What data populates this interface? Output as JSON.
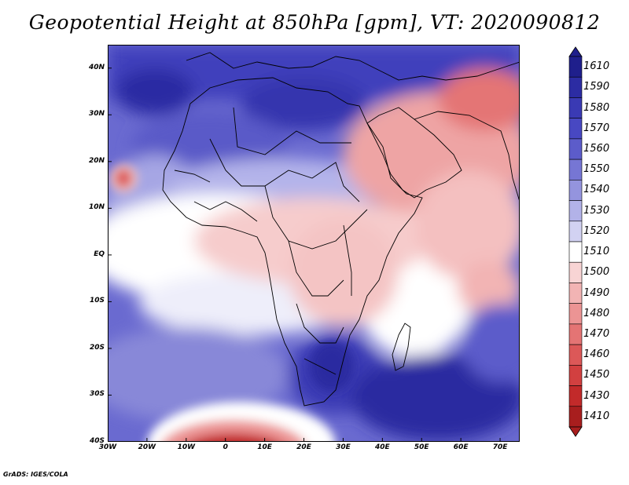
{
  "title": "Geopotential Height at 850hPa [gpm], VT: 2020090812",
  "footer": "GrADS: IGES/COLA",
  "axes": {
    "y_labels": [
      "40N",
      "30N",
      "20N",
      "10N",
      "EQ",
      "10S",
      "20S",
      "30S",
      "40S"
    ],
    "x_labels": [
      "30W",
      "20W",
      "10W",
      "0",
      "10E",
      "20E",
      "30E",
      "40E",
      "50E",
      "60E",
      "70E"
    ]
  },
  "legend": {
    "labels": [
      "1610",
      "1590",
      "1580",
      "1570",
      "1560",
      "1550",
      "1540",
      "1530",
      "1520",
      "1510",
      "1500",
      "1490",
      "1480",
      "1470",
      "1460",
      "1450",
      "1430",
      "1410"
    ],
    "colors": [
      "#1f1f8c",
      "#2c2ca3",
      "#3a3ab4",
      "#4848c2",
      "#5c5cca",
      "#7676d4",
      "#9494de",
      "#b2b2e8",
      "#d2d2f2",
      "#ffffff",
      "#f8d4d4",
      "#f2b4b4",
      "#ec9494",
      "#e47474",
      "#dc5858",
      "#d24040",
      "#c22a2a",
      "#a81e1e"
    ]
  },
  "map": {
    "region": "Africa, Arabian Peninsula and surrounding oceans",
    "lon_range": [
      -30,
      75
    ],
    "lat_range": [
      -40,
      45
    ],
    "colors": {
      "ocean_north": "#4848c2",
      "ocean_deep": "#2c2ca3",
      "neutral": "#ffffff",
      "low_light": "#f8d4d4",
      "low_mid": "#ec9494",
      "low_strong": "#c22a2a"
    }
  }
}
